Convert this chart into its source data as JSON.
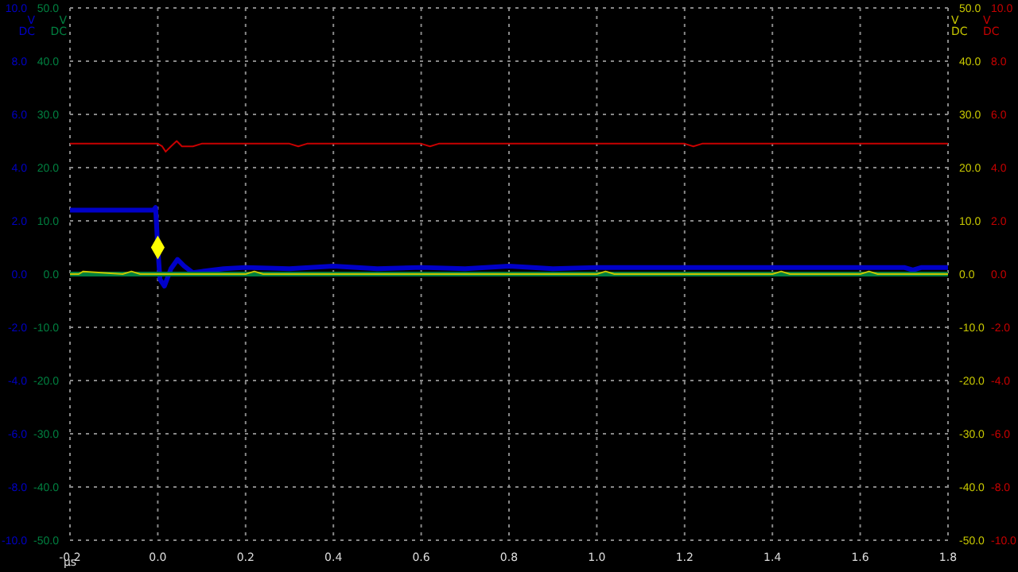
{
  "chart_data": {
    "type": "line",
    "xlabel": "µs",
    "ylabel": "V DC",
    "y2label": "V DC",
    "grid": true,
    "marker": "none",
    "xlim": [
      -0.2,
      1.8
    ],
    "xticks": [
      -0.2,
      {
        "value": 0,
        "label": "0.0"
      },
      0.2,
      0.4,
      0.6,
      0.8,
      {
        "value": 1,
        "label": "1.0"
      },
      1.2,
      1.4,
      1.6,
      1.8
    ],
    "ylim": [
      -10,
      10
    ],
    "yticks": [
      {
        "value": 10,
        "label": "10.0"
      },
      {
        "value": 8,
        "label": "8.0"
      },
      {
        "value": 6,
        "label": "6.0"
      },
      {
        "value": 4,
        "label": "4.0"
      },
      {
        "value": 2,
        "label": "2.0"
      },
      {
        "value": 0,
        "label": "0.0"
      },
      {
        "value": -2,
        "label": "-2.0"
      },
      {
        "value": -4,
        "label": "-4.0"
      },
      {
        "value": -6,
        "label": "-6.0"
      },
      {
        "value": -8,
        "label": "-8.0"
      },
      {
        "value": -10,
        "label": "-10.0"
      }
    ],
    "y2lim": [
      -50,
      50
    ],
    "y2ticks": [
      {
        "value": 50,
        "label": "50.0"
      },
      {
        "value": 40,
        "label": "40.0"
      },
      {
        "value": 30,
        "label": "30.0"
      },
      {
        "value": 20,
        "label": "20.0"
      },
      {
        "value": 10,
        "label": "10.0"
      },
      {
        "value": 0,
        "label": "0.0"
      },
      {
        "value": -10,
        "label": "-10.0"
      },
      {
        "value": -20,
        "label": "-20.0"
      },
      {
        "value": -30,
        "label": "-30.0"
      },
      {
        "value": -40,
        "label": "-40.0"
      },
      {
        "value": -50,
        "label": "-50.0"
      }
    ],
    "series": [
      {
        "axis": "y",
        "color": "#0000c8",
        "x": [
          -0.2,
          -0.01,
          -0.005,
          0,
          0.005,
          0.015,
          0.03,
          0.045,
          0.06,
          0.08,
          0.1,
          0.15,
          0.2,
          0.3,
          0.4,
          0.5,
          0.6,
          0.7,
          0.8,
          0.9,
          1.0,
          1.2,
          1.4,
          1.6,
          1.7,
          1.72,
          1.74,
          1.8
        ],
        "values": [
          2.4,
          2.4,
          2.5,
          1.0,
          -0.2,
          -0.45,
          0.2,
          0.55,
          0.3,
          0.05,
          0.1,
          0.2,
          0.25,
          0.2,
          0.3,
          0.2,
          0.25,
          0.2,
          0.3,
          0.2,
          0.25,
          0.25,
          0.25,
          0.25,
          0.25,
          0.15,
          0.25,
          0.25
        ]
      },
      {
        "axis": "y",
        "color": "#c80000",
        "x": [
          -0.2,
          0.0,
          0.01,
          0.018,
          0.03,
          0.043,
          0.055,
          0.08,
          0.1,
          0.3,
          0.32,
          0.34,
          0.6,
          0.62,
          0.64,
          1.2,
          1.22,
          1.24,
          1.8
        ],
        "values": [
          4.9,
          4.9,
          4.8,
          4.6,
          4.8,
          5.0,
          4.8,
          4.8,
          4.9,
          4.9,
          4.8,
          4.9,
          4.9,
          4.8,
          4.9,
          4.9,
          4.8,
          4.9,
          4.9
        ]
      },
      {
        "axis": "y2",
        "color": "#008040",
        "x": [
          -0.2,
          1.8
        ],
        "values": [
          0,
          0
        ]
      },
      {
        "axis": "y2",
        "color": "#c8c800",
        "x": [
          -0.2,
          -0.18,
          -0.17,
          -0.08,
          -0.06,
          -0.04,
          0.2,
          0.22,
          0.24,
          1.0,
          1.02,
          1.04,
          1.4,
          1.42,
          1.44,
          1.6,
          1.62,
          1.64,
          1.8
        ],
        "values": [
          0,
          0,
          0.5,
          0,
          0.5,
          0,
          0,
          0.5,
          0,
          0,
          0.5,
          0,
          0,
          0.5,
          0,
          0,
          0.5,
          0,
          0
        ]
      },
      {
        "type": "scatter",
        "axis": "y",
        "color": "#ffff00",
        "marker": "diamond",
        "x": [
          0
        ],
        "values": [
          1.0
        ]
      }
    ]
  }
}
